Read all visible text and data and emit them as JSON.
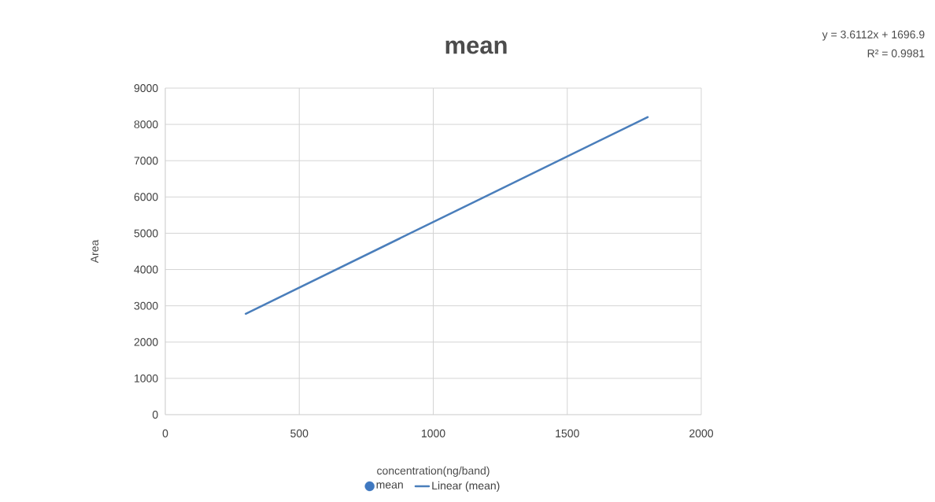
{
  "chart_data": {
    "type": "scatter",
    "title": "mean",
    "xlabel": "concentration(ng/band)",
    "ylabel": "Area",
    "xlim": [
      0,
      2000
    ],
    "xticks": [
      0,
      500,
      1000,
      1500,
      2000
    ],
    "ylim": [
      0,
      9000
    ],
    "yticks": [
      0,
      1000,
      2000,
      3000,
      4000,
      5000,
      6000,
      7000,
      8000,
      9000
    ],
    "grid": true,
    "legend": "bottom",
    "series": [
      {
        "name": "mean",
        "type": "scatter",
        "marker": "circle",
        "color": "#3f78c0"
      },
      {
        "name": "Linear (mean)",
        "type": "line",
        "marker": "none",
        "color": "#4a7ebb",
        "x": [
          300,
          1800
        ],
        "values": [
          2780,
          8200
        ]
      }
    ],
    "annotations": [
      "y = 3.6112x + 1696.9",
      "R² = 0.9981"
    ]
  }
}
